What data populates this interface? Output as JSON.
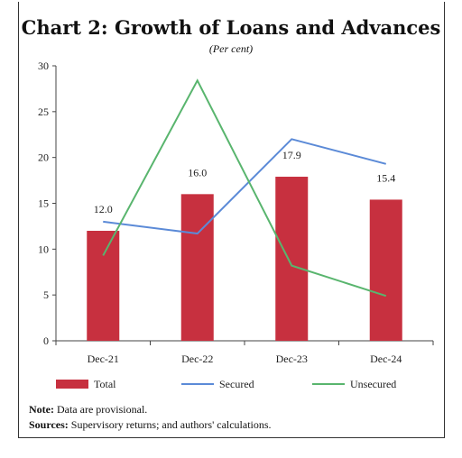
{
  "chart_data": {
    "type": "bar",
    "title": "Chart 2: Growth of Loans and Advances",
    "subtitle": "(Per cent)",
    "categories": [
      "Dec-21",
      "Dec-22",
      "Dec-23",
      "Dec-24"
    ],
    "series": [
      {
        "name": "Total",
        "kind": "bar",
        "color": "#C7303F",
        "values": [
          12.0,
          16.0,
          17.9,
          15.4
        ],
        "labels": [
          "12.0",
          "16.0",
          "17.9",
          "15.4"
        ]
      },
      {
        "name": "Secured",
        "kind": "line",
        "color": "#5B8AD7",
        "values": [
          13.0,
          11.7,
          22.0,
          19.3
        ]
      },
      {
        "name": "Unsecured",
        "kind": "line",
        "color": "#59B56E",
        "values": [
          9.3,
          28.4,
          8.2,
          4.9
        ]
      }
    ],
    "ylim": [
      0,
      30
    ],
    "yticks": [
      "0",
      "5",
      "10",
      "15",
      "20",
      "25",
      "30"
    ],
    "legend_position": "bottom",
    "grid": false
  },
  "notes": {
    "note_label": "Note:",
    "note_text": " Data are provisional.",
    "sources_label": "Sources:",
    "sources_text": " Supervisory returns; and authors' calculations."
  }
}
